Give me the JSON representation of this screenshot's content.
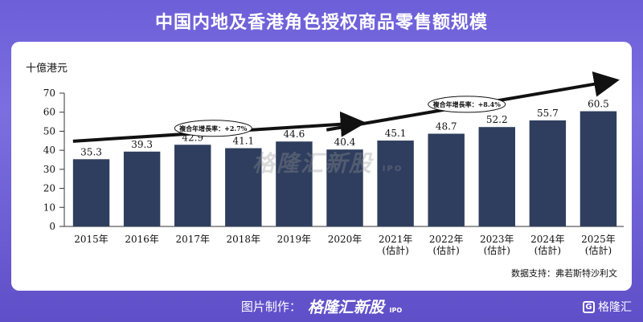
{
  "title": "中国内地及香港角色授权商品零售额规模",
  "unit": "十億港元",
  "source": "数据支持：弗若斯特沙利文",
  "watermark": "格隆汇新股",
  "watermark_sub": "IPO",
  "footer": {
    "label": "图片制作：",
    "brand": "格隆汇新股",
    "brand_sub": "IPO"
  },
  "corner_logo": {
    "icon": "G",
    "text": "格隆汇"
  },
  "chart_data": {
    "type": "bar",
    "categories": [
      "2015年",
      "2016年",
      "2017年",
      "2018年",
      "2019年",
      "2020年",
      "2021年\n(估計)",
      "2022年\n(估計)",
      "2023年\n(估計)",
      "2024年\n(估計)",
      "2025年\n(估計)"
    ],
    "values": [
      35.3,
      39.3,
      42.9,
      41.1,
      44.6,
      40.4,
      45.1,
      48.7,
      52.2,
      55.7,
      60.5
    ],
    "value_labels": [
      "35.3",
      "39.3",
      "42.9",
      "41.1",
      "44.6",
      "40.4",
      "45.1",
      "48.7",
      "52.2",
      "55.7",
      "60.5"
    ],
    "yticks": [
      0,
      10,
      20,
      30,
      40,
      50,
      60,
      70
    ],
    "ylim": [
      0,
      70
    ],
    "ylabel": "十億港元",
    "bar_color": "#2f3e5e",
    "annotations": [
      {
        "text": "複合年增長率：+2.7%",
        "from": "2015年",
        "to": "2020年"
      },
      {
        "text": "複合年增長率：+8.4%",
        "from": "2020年",
        "to": "2025年\n(估計)"
      }
    ]
  }
}
